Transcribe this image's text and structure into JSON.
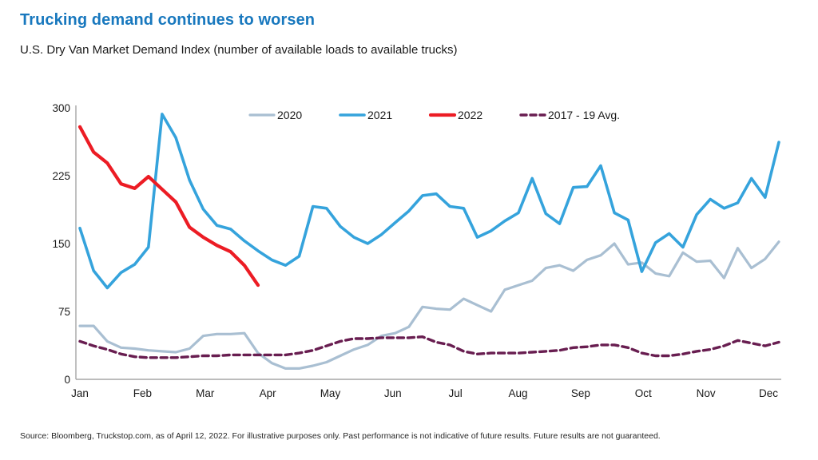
{
  "header": {
    "title": "Trucking demand continues to worsen",
    "subtitle": "U.S. Dry Van Market Demand Index (number of available loads to available trucks)"
  },
  "footer": {
    "source": "Source: Bloomberg, Truckstop.com, as of April 12, 2022. For illustrative purposes only. Past performance is not indicative of future results. Future results are not guaranteed."
  },
  "colors": {
    "title": "#1878BE",
    "text": "#1a1a1a",
    "axis": "#A6A6A6",
    "s2020": "#A9BFD2",
    "s2021": "#35A3DC",
    "s2022": "#EC1C24",
    "avg": "#681D50"
  },
  "chart_data": {
    "type": "line",
    "title": "U.S. Dry Van Market Demand Index",
    "x_unit": "weekly",
    "points_per_year": 52,
    "x_tick_labels": [
      "Jan",
      "Feb",
      "Mar",
      "Apr",
      "May",
      "Jun",
      "Jul",
      "Aug",
      "Sep",
      "Oct",
      "Nov",
      "Dec"
    ],
    "y_ticks": [
      0,
      75,
      150,
      225,
      300
    ],
    "ylim": [
      0,
      300
    ],
    "grid": false,
    "legend_position": "top",
    "series": [
      {
        "name": "2020",
        "color_key": "s2020",
        "dashed": false,
        "width": 3.2,
        "values": [
          59,
          59,
          42,
          35,
          34,
          32,
          31,
          30,
          34,
          48,
          50,
          50,
          51,
          29,
          18,
          12,
          12,
          15,
          19,
          26,
          33,
          38,
          48,
          51,
          58,
          80,
          78,
          77,
          89,
          82,
          75,
          99,
          104,
          109,
          123,
          126,
          120,
          132,
          137,
          150,
          127,
          129,
          117,
          114,
          140,
          130,
          131,
          112,
          145,
          123,
          133,
          152
        ]
      },
      {
        "name": "2021",
        "color_key": "s2021",
        "dashed": false,
        "width": 3.6,
        "values": [
          167,
          120,
          101,
          118,
          127,
          146,
          293,
          267,
          220,
          188,
          170,
          166,
          153,
          142,
          132,
          126,
          136,
          191,
          189,
          169,
          157,
          150,
          160,
          173,
          186,
          203,
          205,
          191,
          189,
          157,
          164,
          175,
          184,
          222,
          183,
          172,
          212,
          213,
          236,
          184,
          176,
          119,
          151,
          161,
          146,
          182,
          199,
          189,
          195,
          222,
          201,
          262
        ]
      },
      {
        "name": "2022",
        "color_key": "s2022",
        "dashed": false,
        "width": 4.2,
        "values": [
          279,
          251,
          239,
          216,
          211,
          224,
          210,
          196,
          168,
          157,
          148,
          141,
          126,
          104
        ]
      },
      {
        "name": "2017 - 19 Avg.",
        "color_key": "avg",
        "dashed": true,
        "width": 3.4,
        "values": [
          42,
          37,
          33,
          28,
          25,
          24,
          24,
          24,
          25,
          26,
          26,
          27,
          27,
          27,
          27,
          27,
          29,
          32,
          37,
          42,
          45,
          45,
          46,
          46,
          46,
          47,
          41,
          38,
          31,
          28,
          29,
          29,
          29,
          30,
          31,
          32,
          35,
          36,
          38,
          38,
          35,
          29,
          26,
          26,
          28,
          31,
          33,
          37,
          43,
          40,
          37,
          41
        ]
      }
    ]
  }
}
